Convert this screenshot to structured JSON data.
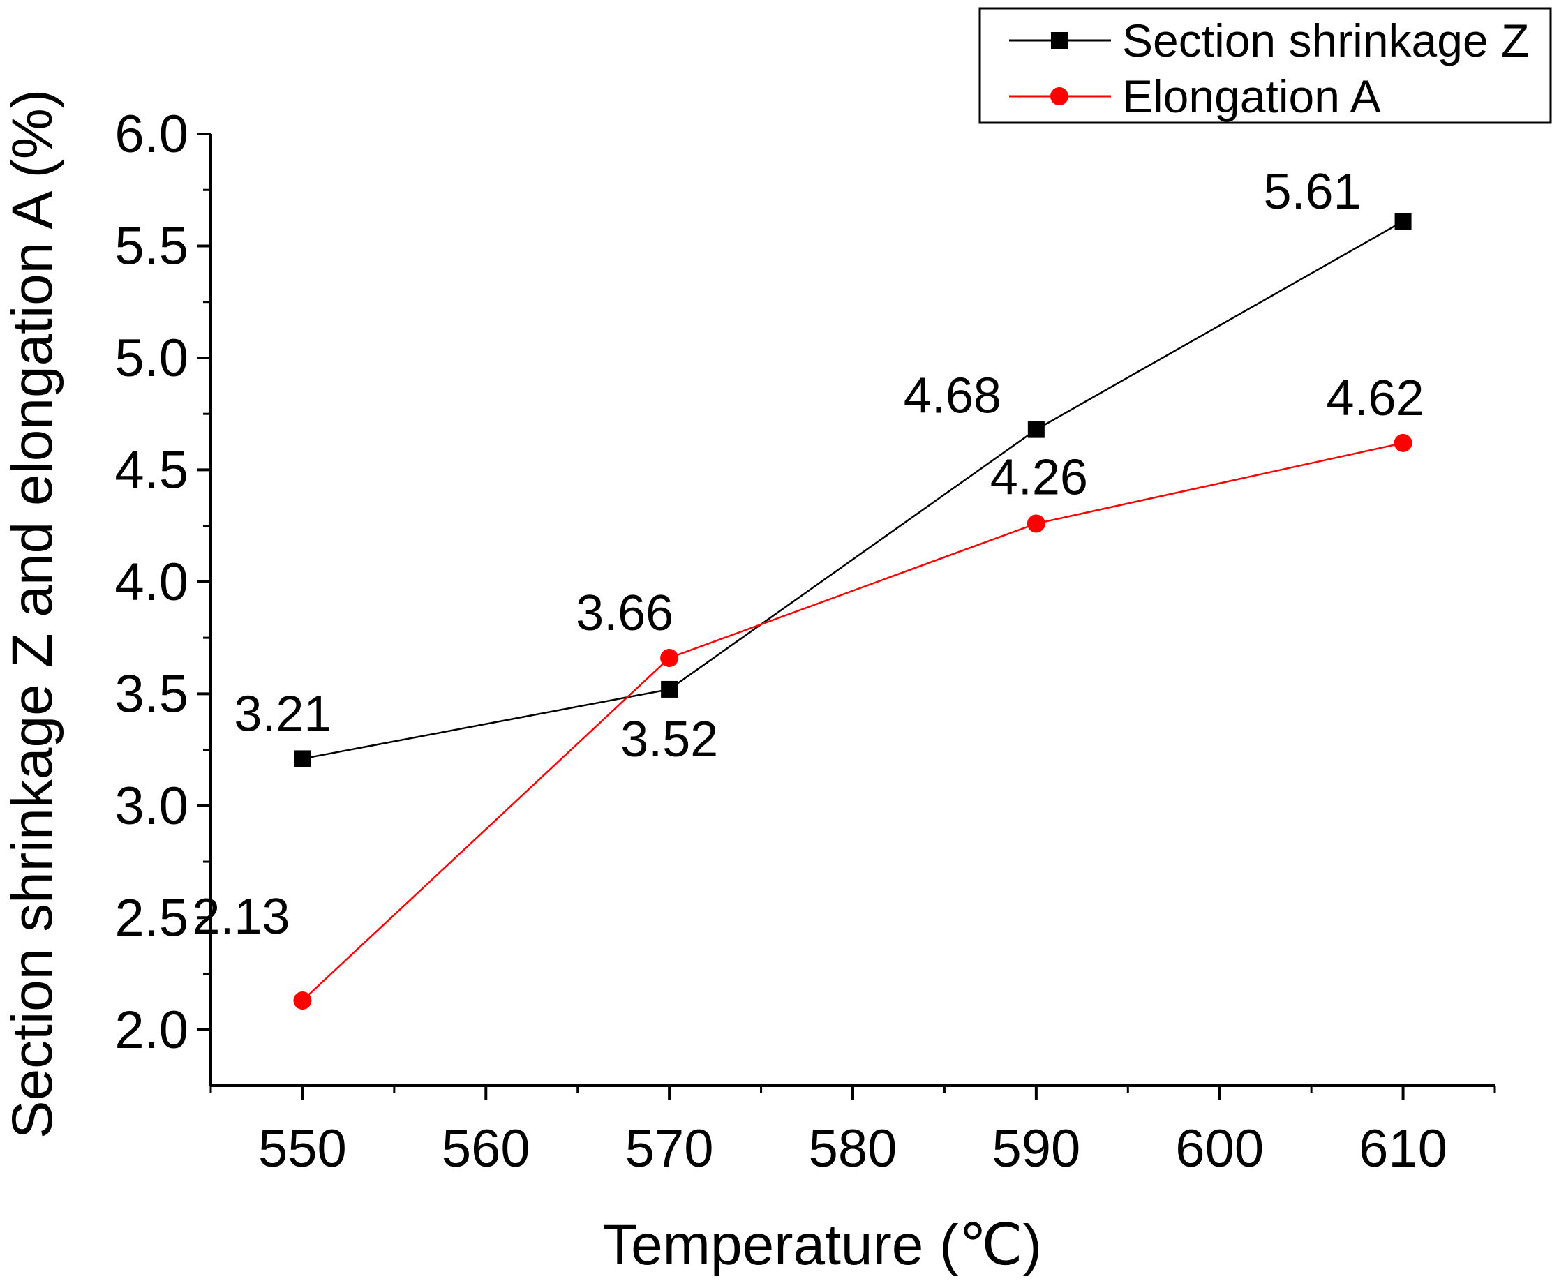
{
  "chart_data": {
    "type": "line",
    "title": "",
    "xlabel": "Temperature (℃)",
    "ylabel": "Section shrinkage Z and elongation A (%)",
    "x": [
      550,
      570,
      590,
      610
    ],
    "xlim": [
      545,
      615
    ],
    "ylim": [
      1.75,
      6.0
    ],
    "xticks": [
      550,
      560,
      570,
      580,
      590,
      600,
      610
    ],
    "xtick_labels": [
      "550",
      "560",
      "570",
      "580",
      "590",
      "600",
      "610"
    ],
    "yticks": [
      2.0,
      2.5,
      3.0,
      3.5,
      4.0,
      4.5,
      5.0,
      5.5,
      6.0
    ],
    "ytick_labels": [
      "2.0",
      "2.5",
      "3.0",
      "3.5",
      "4.0",
      "4.5",
      "5.0",
      "5.5",
      "6.0"
    ],
    "legend_position": "top-right",
    "grid": false,
    "series": [
      {
        "name": "Section shrinkage Z",
        "color": "#000000",
        "marker": "square",
        "values": [
          3.21,
          3.52,
          4.68,
          5.61
        ],
        "data_labels": [
          "3.21",
          "3.52",
          "4.68",
          "5.61"
        ]
      },
      {
        "name": "Elongation A",
        "color": "#ff0000",
        "marker": "circle",
        "values": [
          2.13,
          3.66,
          4.26,
          4.62
        ],
        "data_labels": [
          "2.13",
          "3.66",
          "4.26",
          "4.62"
        ]
      }
    ]
  }
}
